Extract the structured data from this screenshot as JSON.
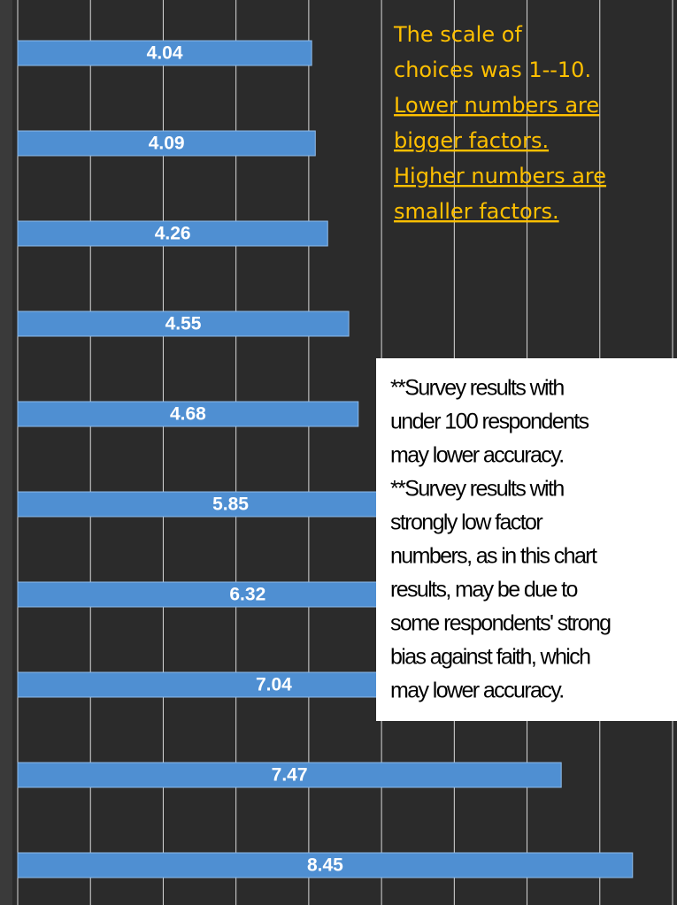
{
  "chart_data": {
    "type": "barh",
    "values": [
      4.04,
      4.09,
      4.26,
      4.55,
      4.68,
      5.85,
      6.32,
      7.04,
      7.47,
      8.45
    ],
    "color": "#4f8fd2",
    "xlim": [
      0,
      9
    ],
    "xticks": [
      0,
      1,
      2,
      3,
      4,
      5,
      6,
      7,
      8,
      9
    ],
    "grid": true,
    "note": [
      "The scale of",
      "choices was 1--10.",
      "Lower numbers are",
      "bigger factors.",
      "Higher numbers are",
      "smaller factors."
    ],
    "disclaimer": [
      "**Survey results with",
      "under 100 respondents",
      "may lower accuracy.",
      "**Survey results with",
      "strongly low factor",
      "numbers, as in this chart",
      "results, may be due to",
      "some respondents' strong",
      "bias against faith, which",
      "may lower accuracy."
    ]
  }
}
